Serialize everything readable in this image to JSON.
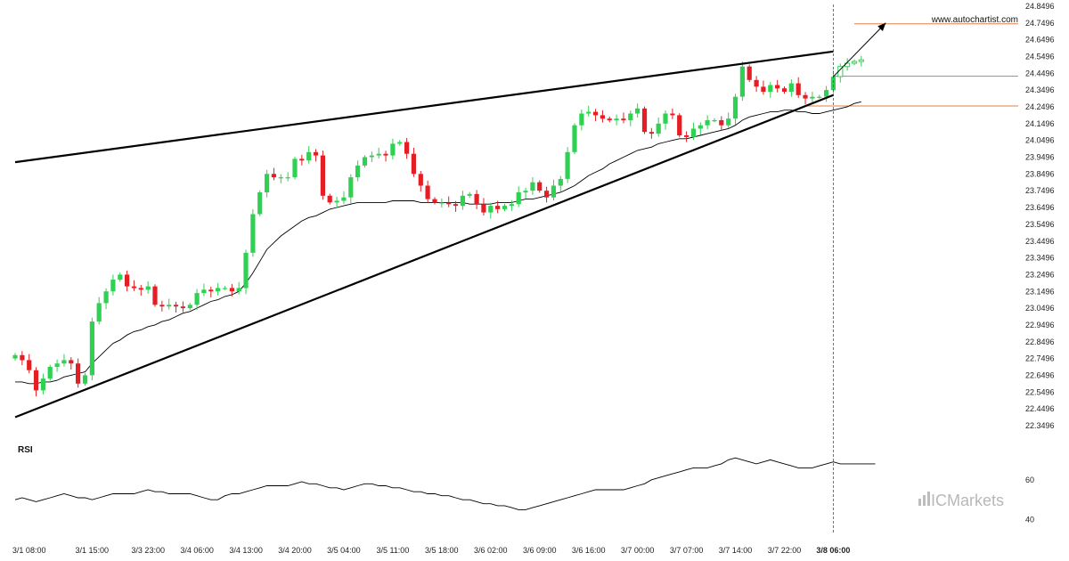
{
  "chart_data": {
    "type": "candlestick",
    "watermark_url": "www.autochartist.com",
    "brand": "ICMarkets",
    "colors": {
      "up": "#2fd152",
      "down": "#e31e24",
      "ma": "#000000",
      "trend": "#000000",
      "level": "#e0814b",
      "forecast": "#000000",
      "grid_vline": "#555555"
    },
    "y_axis": {
      "range": [
        22.3496,
        24.8496
      ],
      "ticks": [
        "24.8496",
        "24.7496",
        "24.6496",
        "24.5496",
        "24.4496",
        "24.3496",
        "24.2496",
        "24.1496",
        "24.0496",
        "23.9496",
        "23.8496",
        "23.7496",
        "23.6496",
        "23.5496",
        "23.4496",
        "23.3496",
        "23.2496",
        "23.1496",
        "23.0496",
        "22.9496",
        "22.8496",
        "22.7496",
        "22.6496",
        "22.5496",
        "22.4496",
        "22.3496"
      ]
    },
    "x_axis": {
      "candles": 125,
      "tick_labels": [
        {
          "i": 2,
          "label": "3/1 08:00"
        },
        {
          "i": 11,
          "label": "3/1 15:00"
        },
        {
          "i": 19,
          "label": "3/3 23:00"
        },
        {
          "i": 26,
          "label": "3/4 06:00"
        },
        {
          "i": 33,
          "label": "3/4 13:00"
        },
        {
          "i": 40,
          "label": "3/4 20:00"
        },
        {
          "i": 47,
          "label": "3/5 04:00"
        },
        {
          "i": 54,
          "label": "3/5 11:00"
        },
        {
          "i": 61,
          "label": "3/5 18:00"
        },
        {
          "i": 68,
          "label": "3/6 02:00"
        },
        {
          "i": 75,
          "label": "3/6 09:00"
        },
        {
          "i": 82,
          "label": "3/6 16:00"
        },
        {
          "i": 89,
          "label": "3/7 00:00"
        },
        {
          "i": 96,
          "label": "3/7 07:00"
        },
        {
          "i": 103,
          "label": "3/7 14:00"
        },
        {
          "i": 110,
          "label": "3/7 22:00"
        },
        {
          "i": 117,
          "label": "3/8 06:00",
          "bold": true
        }
      ],
      "current_index": 117
    },
    "closes": [
      22.77,
      22.74,
      22.68,
      22.56,
      22.63,
      22.7,
      22.72,
      22.74,
      22.72,
      22.6,
      22.65,
      22.97,
      23.08,
      23.15,
      23.22,
      23.25,
      23.18,
      23.17,
      23.16,
      23.18,
      23.07,
      23.06,
      23.07,
      23.06,
      23.05,
      23.07,
      23.14,
      23.16,
      23.15,
      23.17,
      23.17,
      23.15,
      23.17,
      23.38,
      23.61,
      23.74,
      23.85,
      23.83,
      23.83,
      23.83,
      23.94,
      23.93,
      23.98,
      23.96,
      23.72,
      23.68,
      23.69,
      23.71,
      23.83,
      23.9,
      23.95,
      23.96,
      23.97,
      23.96,
      24.03,
      24.04,
      23.97,
      23.85,
      23.78,
      23.7,
      23.68,
      23.68,
      23.67,
      23.66,
      23.72,
      23.73,
      23.67,
      23.62,
      23.66,
      23.64,
      23.66,
      23.67,
      23.74,
      23.75,
      23.8,
      23.75,
      23.71,
      23.78,
      23.82,
      23.98,
      24.14,
      24.21,
      24.22,
      24.2,
      24.18,
      24.17,
      24.18,
      24.17,
      24.21,
      24.24,
      24.1,
      24.09,
      24.15,
      24.21,
      24.2,
      24.08,
      24.07,
      24.12,
      24.14,
      24.17,
      24.17,
      24.14,
      24.18,
      24.31,
      24.49,
      24.41,
      24.37,
      24.34,
      24.38,
      24.36,
      24.34,
      24.39,
      24.32,
      24.3,
      24.31,
      24.31,
      24.35,
      24.43,
      24.49,
      24.51,
      24.52,
      24.53
    ],
    "ma": [
      22.61,
      22.61,
      22.6,
      22.6,
      22.61,
      22.61,
      22.62,
      22.64,
      22.65,
      22.66,
      22.67,
      22.72,
      22.76,
      22.8,
      22.84,
      22.86,
      22.89,
      22.91,
      22.92,
      22.94,
      22.95,
      22.97,
      22.98,
      23.0,
      23.02,
      23.03,
      23.05,
      23.07,
      23.09,
      23.1,
      23.12,
      23.13,
      23.15,
      23.2,
      23.26,
      23.33,
      23.4,
      23.44,
      23.48,
      23.51,
      23.54,
      23.57,
      23.59,
      23.6,
      23.62,
      23.64,
      23.65,
      23.66,
      23.67,
      23.68,
      23.68,
      23.68,
      23.68,
      23.68,
      23.69,
      23.69,
      23.69,
      23.69,
      23.68,
      23.68,
      23.68,
      23.68,
      23.68,
      23.68,
      23.68,
      23.67,
      23.67,
      23.67,
      23.67,
      23.68,
      23.68,
      23.68,
      23.69,
      23.7,
      23.7,
      23.71,
      23.72,
      23.73,
      23.74,
      23.76,
      23.78,
      23.81,
      23.84,
      23.86,
      23.88,
      23.91,
      23.93,
      23.95,
      23.97,
      23.99,
      24.0,
      24.01,
      24.03,
      24.04,
      24.05,
      24.06,
      24.06,
      24.07,
      24.08,
      24.09,
      24.1,
      24.11,
      24.12,
      24.14,
      24.17,
      24.19,
      24.2,
      24.21,
      24.22,
      24.22,
      24.23,
      24.23,
      24.22,
      24.22,
      24.21,
      24.21,
      24.22,
      24.23,
      24.24,
      24.25,
      24.27,
      24.28
    ],
    "pattern": {
      "name": "rising wedge",
      "upper": [
        [
          0,
          23.92
        ],
        [
          117,
          24.58
        ]
      ],
      "lower": [
        [
          0,
          22.4
        ],
        [
          117,
          24.32
        ]
      ],
      "forecast": [
        [
          117,
          24.43
        ],
        [
          124.5,
          24.75
        ]
      ]
    },
    "levels": [
      {
        "value": 24.745,
        "from_i": 120,
        "color": "#e0814b"
      },
      {
        "value": 24.433,
        "from_i": 117,
        "color": "#e0814b"
      },
      {
        "value": 24.255,
        "from_i": 113,
        "color": "#e0814b"
      }
    ],
    "rsi": {
      "label": "RSI",
      "ticks": [
        "60",
        "40"
      ],
      "range": [
        34,
        76
      ],
      "values": [
        50,
        51,
        50,
        49,
        50,
        51,
        52,
        53,
        52,
        51,
        51,
        50,
        51,
        52,
        53,
        53,
        53,
        53,
        54,
        55,
        54,
        54,
        53,
        53,
        53,
        53,
        52,
        51,
        50,
        50,
        52,
        53,
        53,
        54,
        55,
        56,
        57,
        57,
        57,
        57,
        58,
        59,
        58,
        58,
        57,
        56,
        56,
        55,
        56,
        57,
        58,
        58,
        57,
        57,
        56,
        56,
        55,
        54,
        54,
        53,
        53,
        52,
        52,
        51,
        50,
        50,
        49,
        48,
        48,
        47,
        47,
        46,
        45,
        45,
        46,
        47,
        48,
        49,
        50,
        51,
        52,
        53,
        54,
        55,
        55,
        55,
        55,
        55,
        56,
        57,
        58,
        60,
        61,
        62,
        63,
        64,
        65,
        66,
        66,
        66,
        67,
        68,
        70,
        71,
        70,
        69,
        68,
        69,
        70,
        69,
        68,
        67,
        66,
        66,
        66,
        67,
        68,
        69,
        68,
        68,
        68,
        68,
        68,
        68
      ]
    }
  }
}
